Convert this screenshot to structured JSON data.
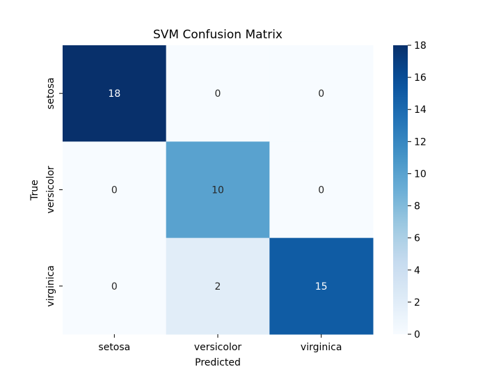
{
  "chart_data": {
    "type": "heatmap",
    "title": "SVM Confusion Matrix",
    "xlabel": "Predicted",
    "ylabel": "True",
    "x_categories": [
      "setosa",
      "versicolor",
      "virginica"
    ],
    "y_categories": [
      "setosa",
      "versicolor",
      "virginica"
    ],
    "values": [
      [
        18,
        0,
        0
      ],
      [
        0,
        10,
        0
      ],
      [
        0,
        2,
        15
      ]
    ],
    "colormap": "Blues",
    "colorbar": {
      "range": [
        0,
        18
      ],
      "ticks": [
        0,
        2,
        4,
        6,
        8,
        10,
        12,
        14,
        16,
        18
      ]
    },
    "grid": false
  }
}
